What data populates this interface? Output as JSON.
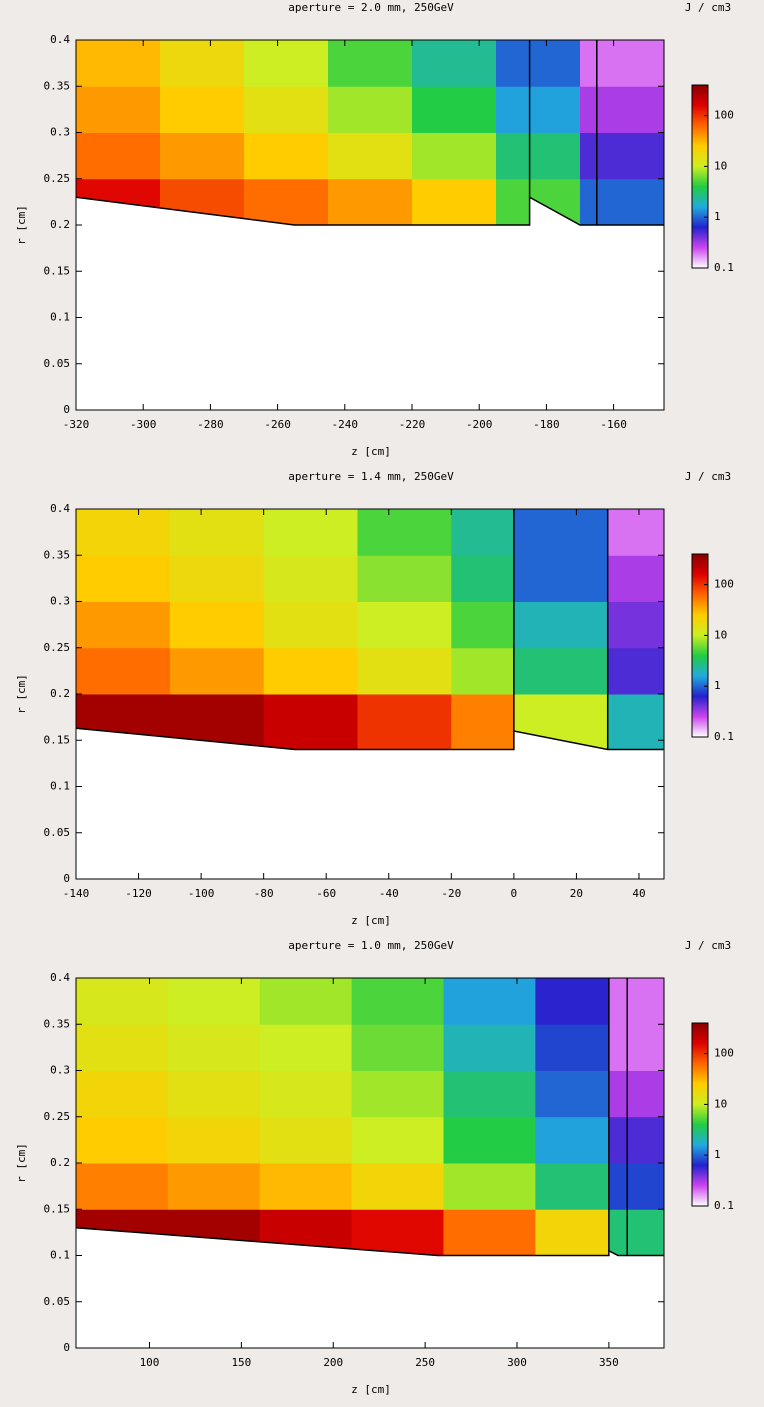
{
  "chart_data": [
    {
      "type": "heatmap",
      "title": "aperture = 2.0 mm, 250GeV",
      "xlabel": "z [cm]",
      "ylabel": "r [cm]",
      "colorbar_label": "J / cm3",
      "xlim": [
        -320,
        -145
      ],
      "ylim": [
        0,
        0.4
      ],
      "xticks": [
        -320,
        -300,
        -280,
        -260,
        -240,
        -220,
        -200,
        -180,
        -160
      ],
      "yticks": [
        0,
        0.05,
        0.1,
        0.15,
        0.2,
        0.25,
        0.3,
        0.35,
        0.4
      ],
      "xbins": [
        -320,
        -295,
        -270,
        -245,
        -220,
        -195,
        -170,
        -145
      ],
      "ybins": [
        0.2,
        0.25,
        0.3,
        0.35,
        0.4
      ],
      "z": [
        [
          150,
          80,
          60,
          40,
          25,
          5,
          1
        ],
        [
          60,
          40,
          25,
          15,
          8,
          3,
          0.5
        ],
        [
          40,
          25,
          15,
          8,
          4,
          1.5,
          0.3
        ],
        [
          30,
          18,
          10,
          5,
          2.5,
          1,
          0.2
        ]
      ],
      "zlim": [
        0.1,
        400
      ],
      "zticks": [
        0.1,
        1,
        10,
        100
      ],
      "log_z": true,
      "colormap": [
        "#ffffff",
        "#cc44ee",
        "#2222cc",
        "#22aadd",
        "#22cc44",
        "#ccee22",
        "#ffcc00",
        "#ff6600",
        "#dd0000",
        "#880000"
      ],
      "boundary": {
        "x": [
          -320,
          -255,
          -185,
          -185,
          -170,
          -145
        ],
        "y": [
          0.23,
          0.2,
          0.2,
          0.23,
          0.2,
          0.2
        ]
      },
      "dividers": [
        -185,
        -165
      ]
    },
    {
      "type": "heatmap",
      "title": "aperture = 1.4 mm, 250GeV",
      "xlabel": "z [cm]",
      "ylabel": "r [cm]",
      "colorbar_label": "J / cm3",
      "xlim": [
        -140,
        48
      ],
      "ylim": [
        0,
        0.4
      ],
      "xticks": [
        -140,
        -120,
        -100,
        -80,
        -60,
        -40,
        -20,
        0,
        20,
        40
      ],
      "yticks": [
        0,
        0.05,
        0.1,
        0.15,
        0.2,
        0.25,
        0.3,
        0.35,
        0.4
      ],
      "xbins": [
        -140,
        -110,
        -80,
        -50,
        -20,
        0,
        30,
        48
      ],
      "ybins": [
        0.14,
        0.2,
        0.25,
        0.3,
        0.35,
        0.4
      ],
      "z": [
        [
          300,
          300,
          200,
          100,
          50,
          10,
          2
        ],
        [
          60,
          40,
          25,
          15,
          8,
          3,
          0.5
        ],
        [
          40,
          25,
          15,
          10,
          5,
          2,
          0.4
        ],
        [
          25,
          18,
          12,
          7,
          3,
          1,
          0.3
        ],
        [
          20,
          15,
          10,
          5,
          2.5,
          1,
          0.2
        ]
      ],
      "zlim": [
        0.1,
        400
      ],
      "zticks": [
        0.1,
        1,
        10,
        100
      ],
      "log_z": true,
      "colormap": [
        "#ffffff",
        "#cc44ee",
        "#2222cc",
        "#22aadd",
        "#22cc44",
        "#ccee22",
        "#ffcc00",
        "#ff6600",
        "#dd0000",
        "#880000"
      ],
      "boundary": {
        "x": [
          -140,
          -70,
          0,
          0,
          30,
          48
        ],
        "y": [
          0.163,
          0.14,
          0.14,
          0.16,
          0.14,
          0.14
        ]
      },
      "dividers": [
        0,
        30
      ]
    },
    {
      "type": "heatmap",
      "title": "aperture = 1.0 mm, 250GeV",
      "xlabel": "z [cm]",
      "ylabel": "r [cm]",
      "colorbar_label": "J / cm3",
      "xlim": [
        60,
        380
      ],
      "ylim": [
        0,
        0.4
      ],
      "xticks": [
        100,
        150,
        200,
        250,
        300,
        350
      ],
      "yticks": [
        0,
        0.05,
        0.1,
        0.15,
        0.2,
        0.25,
        0.3,
        0.35,
        0.4
      ],
      "xbins": [
        60,
        110,
        160,
        210,
        260,
        310,
        350,
        380
      ],
      "ybins": [
        0.1,
        0.15,
        0.2,
        0.25,
        0.3,
        0.35,
        0.4
      ],
      "z": [
        [
          300,
          300,
          200,
          150,
          60,
          20,
          3
        ],
        [
          50,
          40,
          30,
          20,
          8,
          3,
          0.8
        ],
        [
          25,
          20,
          15,
          10,
          4,
          1.5,
          0.5
        ],
        [
          20,
          15,
          12,
          8,
          3,
          1,
          0.3
        ],
        [
          15,
          12,
          10,
          6,
          2,
          0.8,
          0.2
        ],
        [
          12,
          10,
          8,
          5,
          1.5,
          0.6,
          0.2
        ]
      ],
      "zlim": [
        0.1,
        400
      ],
      "zticks": [
        0.1,
        1,
        10,
        100
      ],
      "log_z": true,
      "colormap": [
        "#ffffff",
        "#cc44ee",
        "#2222cc",
        "#22aadd",
        "#22cc44",
        "#ccee22",
        "#ffcc00",
        "#ff6600",
        "#dd0000",
        "#880000"
      ],
      "boundary": {
        "x": [
          60,
          257,
          350,
          350,
          355,
          380
        ],
        "y": [
          0.13,
          0.1,
          0.1,
          0.105,
          0.1,
          0.1
        ]
      },
      "dividers": [
        350,
        360
      ]
    }
  ]
}
